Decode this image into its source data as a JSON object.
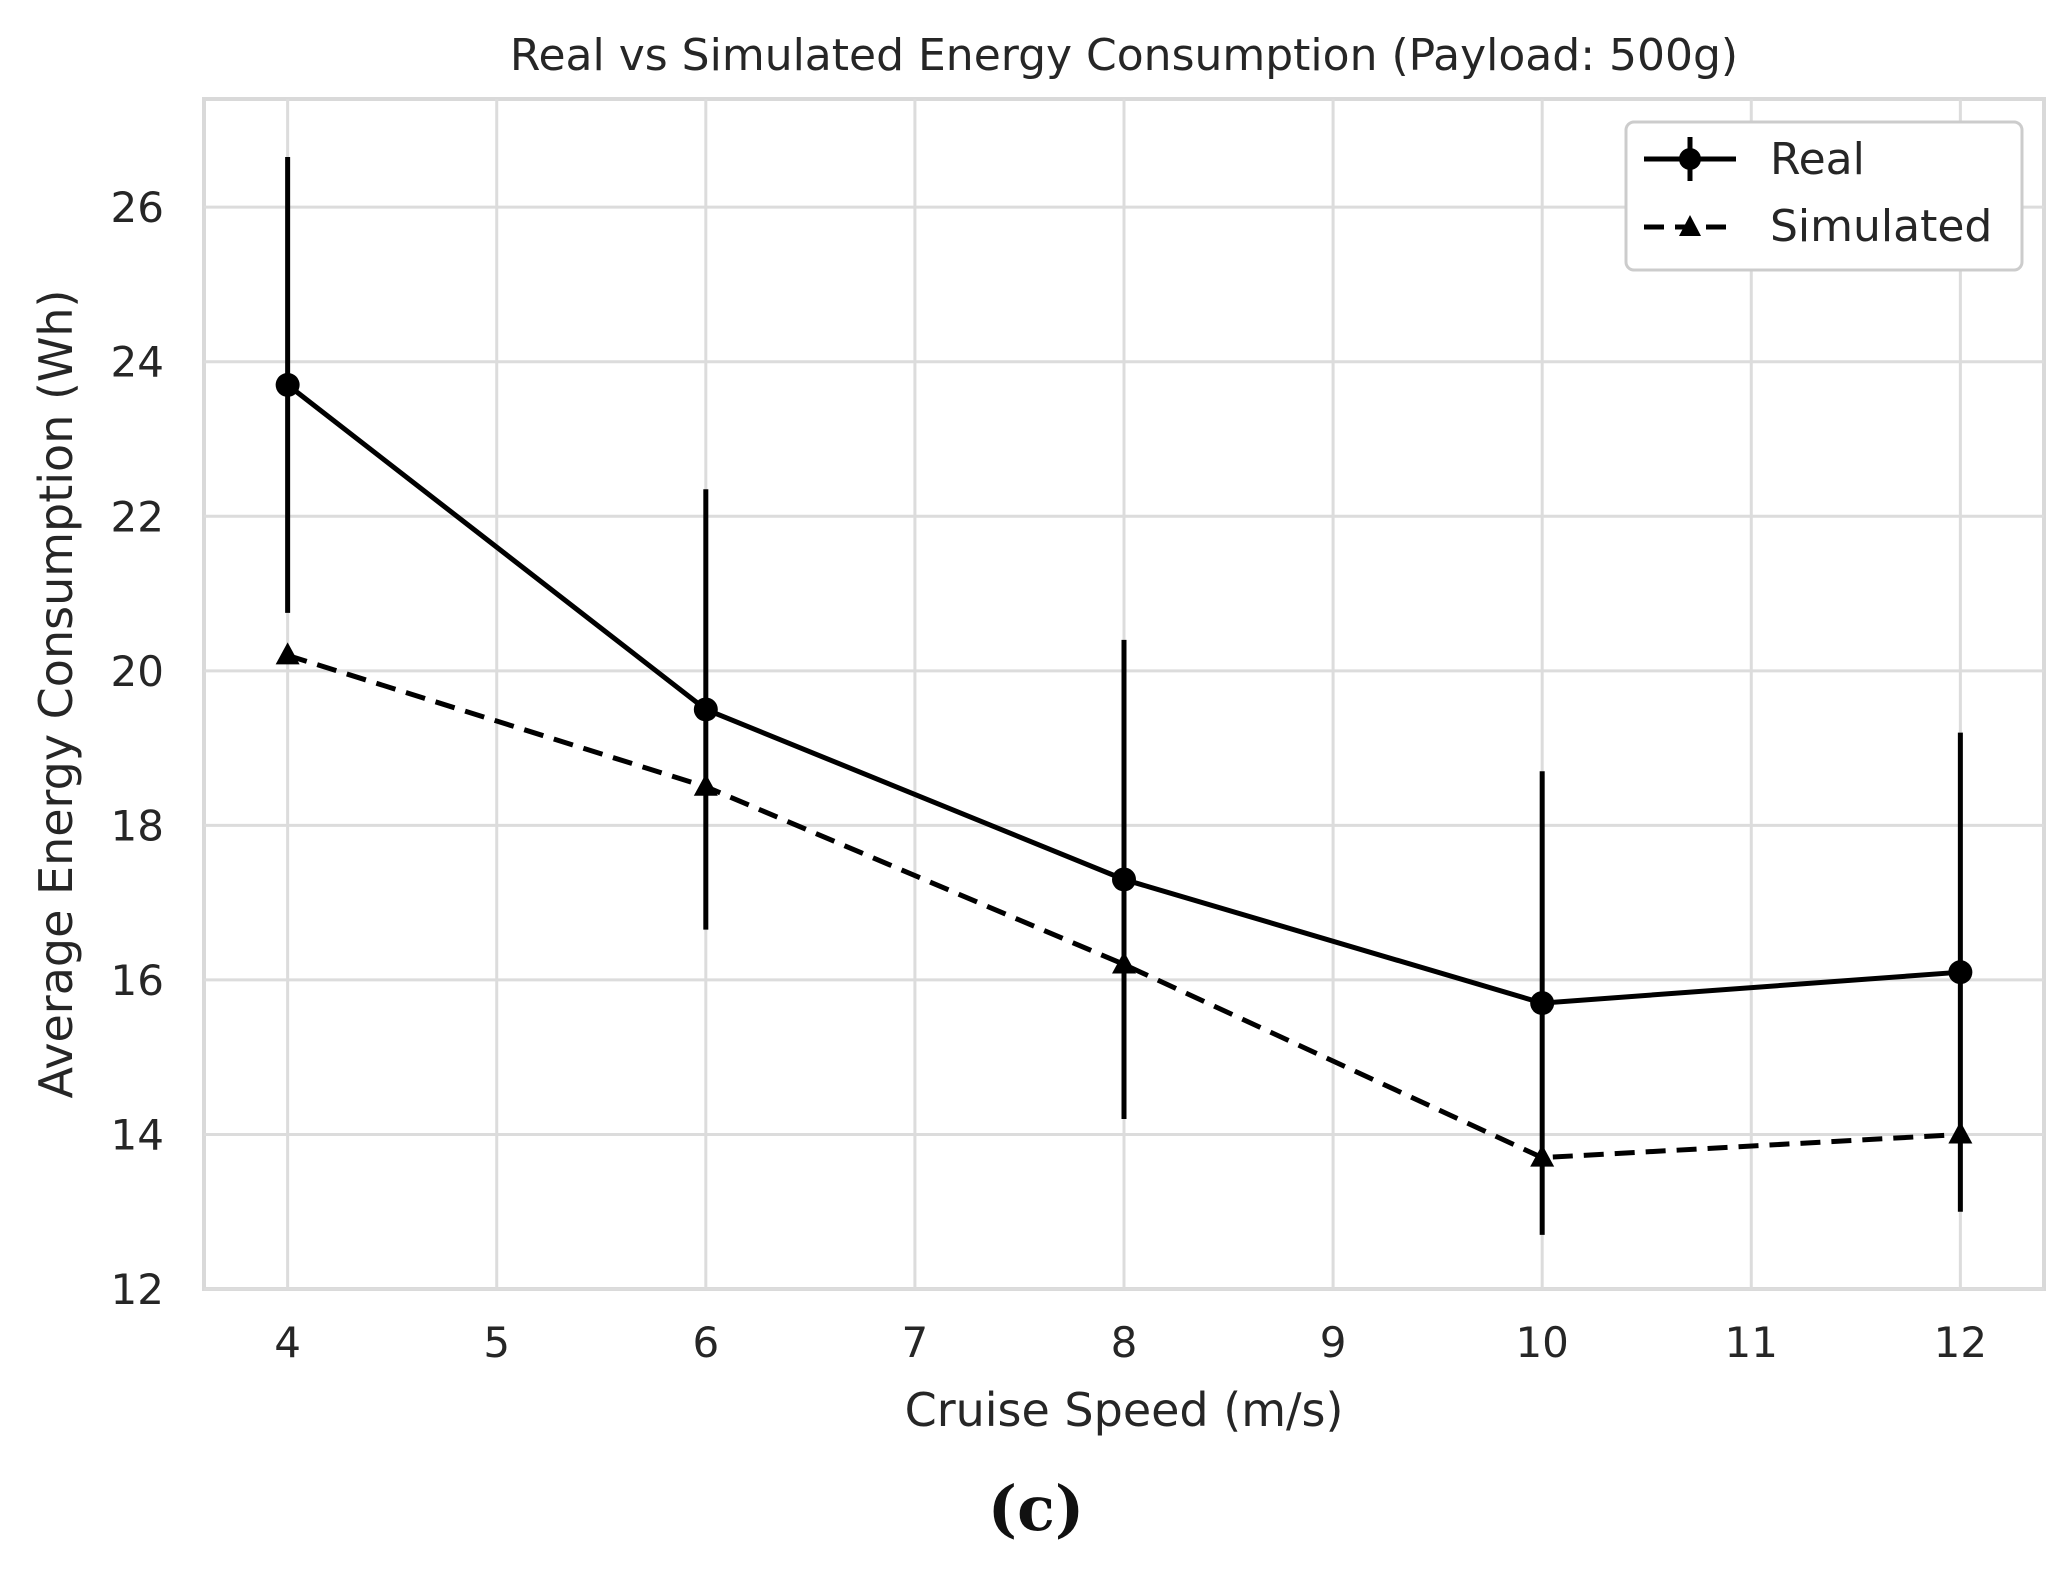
{
  "chart_data": {
    "type": "line",
    "title": "Real vs Simulated Energy Consumption (Payload: 500g)",
    "xlabel": "Cruise Speed (m/s)",
    "ylabel": "Average Energy Consumption (Wh)",
    "xlim": [
      3.6,
      12.4
    ],
    "ylim": [
      12,
      27.4
    ],
    "xticks": [
      4,
      5,
      6,
      7,
      8,
      9,
      10,
      11,
      12
    ],
    "yticks": [
      12,
      14,
      16,
      18,
      20,
      22,
      24,
      26
    ],
    "grid": true,
    "legend_position": "top-right",
    "x": [
      4,
      6,
      8,
      10,
      12
    ],
    "series": [
      {
        "name": "Real",
        "values": [
          23.7,
          19.5,
          17.3,
          15.7,
          16.1
        ],
        "error": [
          2.95,
          2.85,
          3.1,
          3.0,
          3.1
        ],
        "line_style": "solid",
        "marker": "circle",
        "color": "#000000"
      },
      {
        "name": "Simulated",
        "values": [
          20.2,
          18.5,
          16.2,
          13.7,
          14.0
        ],
        "line_style": "dashed",
        "marker": "triangle",
        "color": "#000000"
      }
    ]
  },
  "caption": "(c)"
}
